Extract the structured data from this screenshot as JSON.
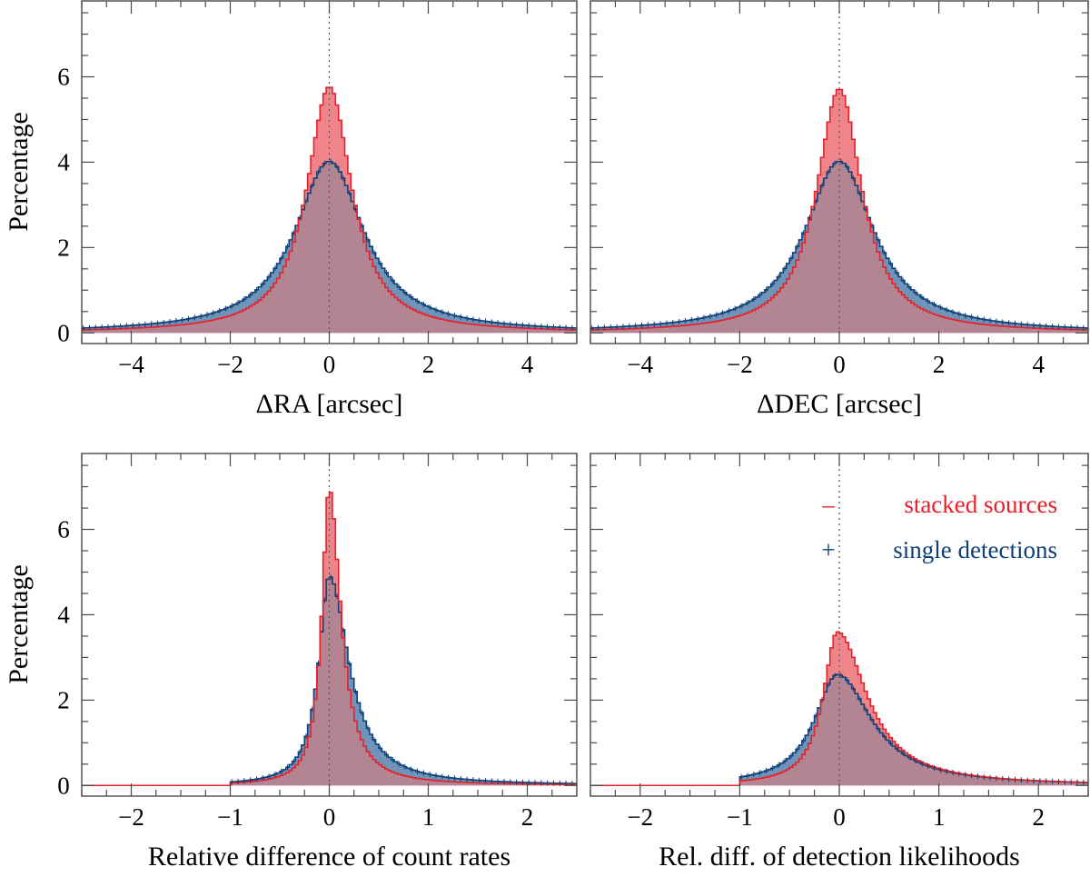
{
  "colors": {
    "stacked": "#e8202a",
    "stacked_fill": "#ef858a",
    "single": "#0e3f76",
    "single_fill": "#6e94b9",
    "overlap_fill": "#b38593",
    "axis": "#4a4a4a"
  },
  "chart_data": [
    {
      "type": "histogram",
      "panel": "top-left",
      "xlabel": "ΔRA  [arcsec]",
      "ylabel": "Percentage",
      "xlim": [
        -5,
        5
      ],
      "ylim": [
        -0.25,
        7.8
      ],
      "xticks": [
        -4,
        -2,
        0,
        2,
        4
      ],
      "xtick_labels": [
        "−4",
        "−2",
        "0",
        "2",
        "4"
      ],
      "yticks": [
        0,
        2,
        4,
        6
      ],
      "ytick_labels": [
        "0",
        "2",
        "4",
        "6"
      ],
      "series": [
        {
          "name": "stacked sources",
          "shape": "lorentzian",
          "center": 0,
          "peak": 5.77,
          "width": 0.55,
          "support": [
            -5,
            5
          ]
        },
        {
          "name": "single detections",
          "shape": "lorentzian",
          "center": 0,
          "peak": 4.02,
          "width": 0.85,
          "support": [
            -5,
            5
          ]
        }
      ]
    },
    {
      "type": "histogram",
      "panel": "top-right",
      "xlabel": "ΔDEC  [arcsec]",
      "ylabel": "",
      "xlim": [
        -5,
        5
      ],
      "ylim": [
        -0.25,
        7.8
      ],
      "xticks": [
        -4,
        -2,
        0,
        2,
        4
      ],
      "xtick_labels": [
        "−4",
        "−2",
        "0",
        "2",
        "4"
      ],
      "yticks": [
        0,
        2,
        4,
        6
      ],
      "ytick_labels": [],
      "series": [
        {
          "name": "stacked sources",
          "shape": "lorentzian",
          "center": 0,
          "peak": 5.72,
          "width": 0.55,
          "support": [
            -5,
            5
          ]
        },
        {
          "name": "single detections",
          "shape": "lorentzian",
          "center": 0,
          "peak": 4.02,
          "width": 0.85,
          "support": [
            -5,
            5
          ]
        }
      ]
    },
    {
      "type": "histogram",
      "panel": "bottom-left",
      "xlabel": "Relative difference of count rates",
      "ylabel": "Percentage",
      "xlim": [
        -2.5,
        2.5
      ],
      "ylim": [
        -0.25,
        7.8
      ],
      "xticks": [
        -2,
        -1,
        0,
        1,
        2
      ],
      "xtick_labels": [
        "−2",
        "−1",
        "0",
        "1",
        "2"
      ],
      "yticks": [
        0,
        2,
        4,
        6
      ],
      "ytick_labels": [
        "0",
        "2",
        "4",
        "6"
      ],
      "series": [
        {
          "name": "stacked sources",
          "shape": "lorentzian-skew",
          "center": 0,
          "peak": 6.95,
          "width_left": 0.09,
          "width_right": 0.14,
          "support": [
            -1.0,
            2.5
          ]
        },
        {
          "name": "single detections",
          "shape": "lorentzian-skew",
          "center": 0,
          "peak": 4.9,
          "width_left": 0.13,
          "width_right": 0.24,
          "support": [
            -1.0,
            2.5
          ]
        }
      ]
    },
    {
      "type": "histogram",
      "panel": "bottom-right",
      "xlabel": "Rel. diff. of detection likelihoods",
      "ylabel": "",
      "xlim": [
        -2.5,
        2.5
      ],
      "ylim": [
        -0.25,
        7.8
      ],
      "xticks": [
        -2,
        -1,
        0,
        1,
        2
      ],
      "xtick_labels": [
        "−2",
        "−1",
        "0",
        "1",
        "2"
      ],
      "yticks": [
        0,
        2,
        4,
        6
      ],
      "ytick_labels": [],
      "series": [
        {
          "name": "stacked sources",
          "shape": "lorentzian-skew",
          "center": -0.02,
          "peak": 3.6,
          "width_left": 0.17,
          "width_right": 0.36,
          "support": [
            -1.0,
            2.5
          ]
        },
        {
          "name": "single detections",
          "shape": "lorentzian-skew",
          "center": -0.02,
          "peak": 2.6,
          "width_left": 0.28,
          "width_right": 0.42,
          "support": [
            -1.0,
            2.5
          ]
        }
      ]
    }
  ],
  "legend": {
    "placement": "top-right of bottom-right panel",
    "entries": [
      {
        "marker": "–",
        "label": "stacked sources"
      },
      {
        "marker": "+",
        "label": "single detections"
      }
    ]
  }
}
